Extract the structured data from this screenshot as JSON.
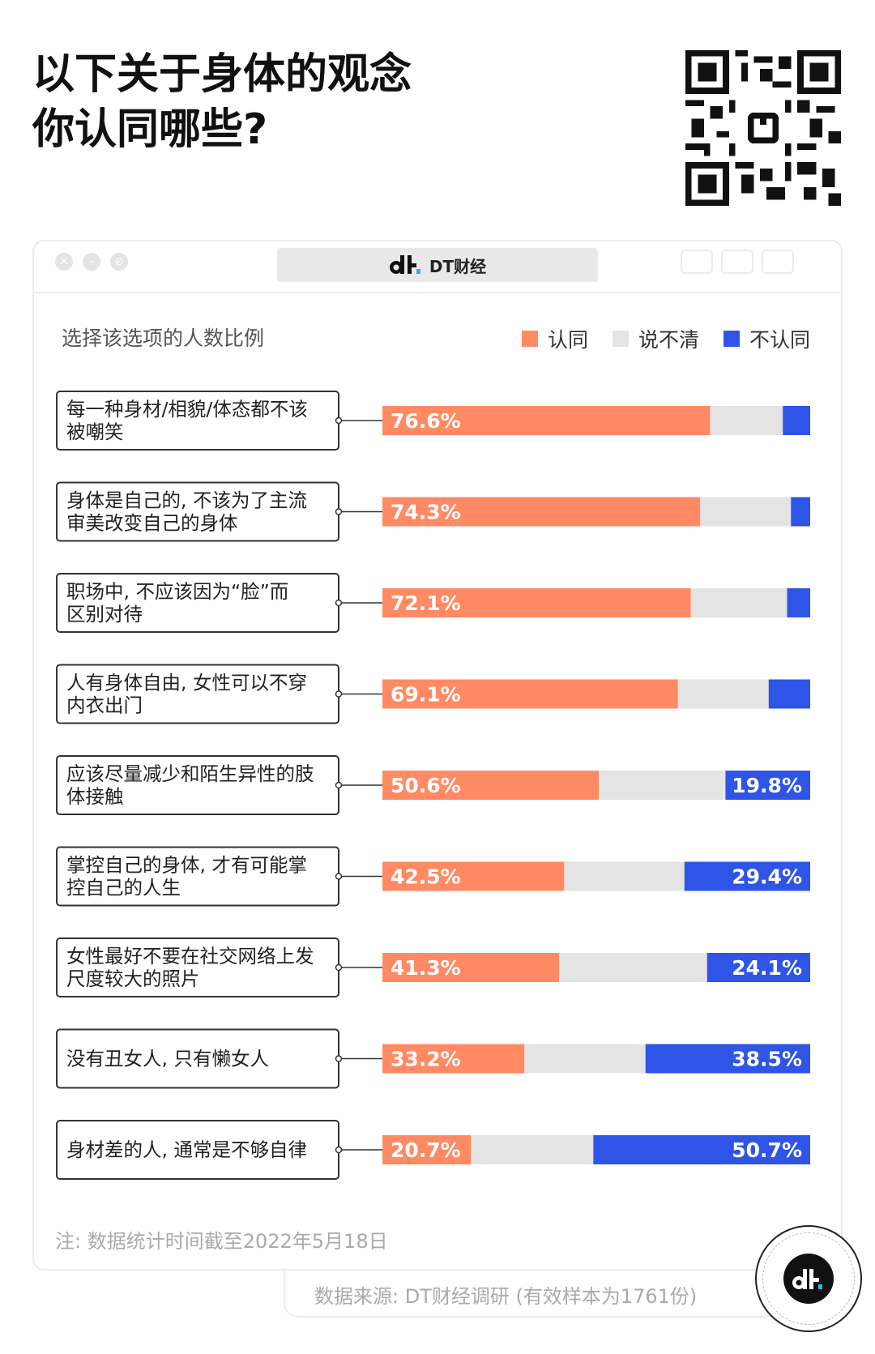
{
  "title_line1": "以下关于身体的观念",
  "title_line2": "你认同哪些?",
  "window": {
    "tab_title": "DT财经"
  },
  "chart_label": "选择该选项的人数比例",
  "colors": {
    "agree": "#ff8a63",
    "unsure": "#e4e4e4",
    "disagree": "#2e55e6"
  },
  "chart_data": {
    "type": "bar",
    "stacked": true,
    "orientation": "horizontal",
    "ylabel": "选择该选项的人数比例",
    "legend_position": "top-right",
    "categories": [
      "每一种身材/相貌/体态都不该被嘲笑",
      "身体是自己的, 不该为了主流审美改变自己的身体",
      "职场中, 不应该因为“脸”而区别对待",
      "人有身体自由, 女性可以不穿内衣出门",
      "应该尽量减少和陌生异性的肢体接触",
      "掌控自己的身体, 才有可能掌控自己的人生",
      "女性最好不要在社交网络上发尺度较大的照片",
      "没有丑女人, 只有懒女人",
      "身材差的人, 通常是不够自律"
    ],
    "series": [
      {
        "name": "认同",
        "values": [
          76.6,
          74.3,
          72.1,
          69.1,
          50.6,
          42.5,
          41.3,
          33.2,
          20.7
        ],
        "labels": [
          "76.6%",
          "74.3%",
          "72.1%",
          "69.1%",
          "50.6%",
          "42.5%",
          "41.3%",
          "33.2%",
          "20.7%"
        ]
      },
      {
        "name": "说不清",
        "values": [
          17.0,
          21.2,
          22.5,
          21.2,
          29.6,
          28.1,
          34.6,
          28.3,
          28.6
        ],
        "labels": [
          "",
          "",
          "",
          "",
          "",
          "",
          "",
          "",
          ""
        ]
      },
      {
        "name": "不认同",
        "values": [
          6.4,
          4.5,
          5.4,
          9.7,
          19.8,
          29.4,
          24.1,
          38.5,
          50.7
        ],
        "labels": [
          "",
          "",
          "",
          "",
          "19.8%",
          "29.4%",
          "24.1%",
          "38.5%",
          "50.7%"
        ]
      }
    ],
    "xlim": [
      0,
      100
    ]
  },
  "note": "注: 数据统计时间截至2022年5月18日",
  "source": "数据来源: DT财经调研 (有效样本为1761份)"
}
